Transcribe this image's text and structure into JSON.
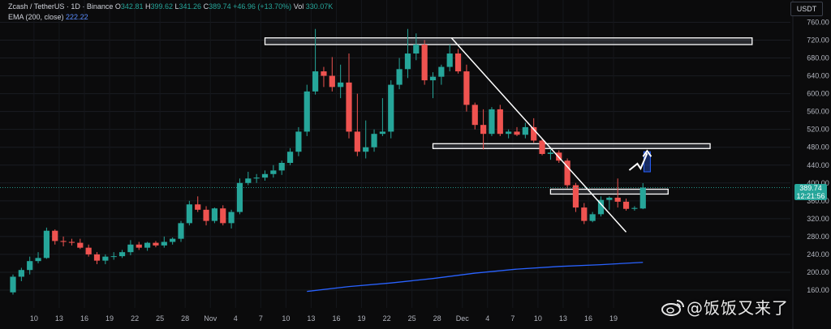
{
  "header": {
    "symbol": "Zcash / TetherUS · 1D · Binance",
    "ohlc": [
      {
        "label": "O",
        "value": "342.81"
      },
      {
        "label": "H",
        "value": "399.62"
      },
      {
        "label": "L",
        "value": "341.26"
      },
      {
        "label": "C",
        "value": "389.74"
      }
    ],
    "change": "+46.96 (+13.70%)",
    "volume_label": "Vol",
    "volume": "330.07K",
    "ema_label": "EMA (200, close)",
    "ema_value": "222.22",
    "currency": "USDT"
  },
  "price_tag": {
    "price": "389.74",
    "countdown": "12:21:56"
  },
  "watermark": "@饭饭又来了",
  "colors": {
    "up": "#26a69a",
    "down": "#ef5350",
    "ema": "#2962ff",
    "background": "#0b0b0c"
  },
  "chart_data": {
    "type": "candlestick",
    "y_axis": {
      "ticks": [
        160,
        200,
        240,
        280,
        320,
        360,
        400,
        440,
        480,
        520,
        560,
        600,
        640,
        680,
        720,
        760
      ],
      "range": [
        145,
        780
      ]
    },
    "x_axis": {
      "labels": [
        "10",
        "13",
        "16",
        "19",
        "22",
        "25",
        "28",
        "Nov",
        "4",
        "7",
        "10",
        "13",
        "16",
        "19",
        "22",
        "25",
        "28",
        "Dec",
        "4",
        "7",
        "10",
        "13",
        "16",
        "19"
      ]
    },
    "candles": [
      {
        "o": 155,
        "h": 195,
        "l": 150,
        "c": 190
      },
      {
        "o": 190,
        "h": 210,
        "l": 180,
        "c": 205
      },
      {
        "o": 205,
        "h": 235,
        "l": 195,
        "c": 225
      },
      {
        "o": 225,
        "h": 245,
        "l": 220,
        "c": 232
      },
      {
        "o": 232,
        "h": 300,
        "l": 230,
        "c": 293
      },
      {
        "o": 293,
        "h": 296,
        "l": 262,
        "c": 270
      },
      {
        "o": 270,
        "h": 280,
        "l": 258,
        "c": 268
      },
      {
        "o": 268,
        "h": 275,
        "l": 260,
        "c": 266
      },
      {
        "o": 266,
        "h": 275,
        "l": 252,
        "c": 255
      },
      {
        "o": 255,
        "h": 262,
        "l": 235,
        "c": 240
      },
      {
        "o": 240,
        "h": 245,
        "l": 218,
        "c": 226
      },
      {
        "o": 226,
        "h": 240,
        "l": 218,
        "c": 235
      },
      {
        "o": 235,
        "h": 245,
        "l": 228,
        "c": 236
      },
      {
        "o": 236,
        "h": 250,
        "l": 232,
        "c": 245
      },
      {
        "o": 245,
        "h": 272,
        "l": 238,
        "c": 262
      },
      {
        "o": 262,
        "h": 268,
        "l": 250,
        "c": 255
      },
      {
        "o": 255,
        "h": 268,
        "l": 248,
        "c": 266
      },
      {
        "o": 266,
        "h": 270,
        "l": 256,
        "c": 260
      },
      {
        "o": 260,
        "h": 280,
        "l": 255,
        "c": 268
      },
      {
        "o": 268,
        "h": 278,
        "l": 262,
        "c": 275
      },
      {
        "o": 275,
        "h": 315,
        "l": 268,
        "c": 310
      },
      {
        "o": 310,
        "h": 360,
        "l": 305,
        "c": 352
      },
      {
        "o": 352,
        "h": 370,
        "l": 335,
        "c": 340
      },
      {
        "o": 340,
        "h": 348,
        "l": 305,
        "c": 315
      },
      {
        "o": 315,
        "h": 345,
        "l": 310,
        "c": 343
      },
      {
        "o": 343,
        "h": 350,
        "l": 305,
        "c": 310
      },
      {
        "o": 310,
        "h": 340,
        "l": 298,
        "c": 335
      },
      {
        "o": 335,
        "h": 410,
        "l": 330,
        "c": 400
      },
      {
        "o": 400,
        "h": 425,
        "l": 395,
        "c": 410
      },
      {
        "o": 410,
        "h": 420,
        "l": 400,
        "c": 412
      },
      {
        "o": 412,
        "h": 428,
        "l": 405,
        "c": 420
      },
      {
        "o": 420,
        "h": 440,
        "l": 412,
        "c": 428
      },
      {
        "o": 428,
        "h": 450,
        "l": 418,
        "c": 445
      },
      {
        "o": 445,
        "h": 478,
        "l": 440,
        "c": 470
      },
      {
        "o": 470,
        "h": 525,
        "l": 460,
        "c": 515
      },
      {
        "o": 515,
        "h": 620,
        "l": 505,
        "c": 605
      },
      {
        "o": 605,
        "h": 745,
        "l": 598,
        "c": 650
      },
      {
        "o": 650,
        "h": 660,
        "l": 615,
        "c": 640
      },
      {
        "o": 640,
        "h": 682,
        "l": 605,
        "c": 615
      },
      {
        "o": 615,
        "h": 665,
        "l": 590,
        "c": 625
      },
      {
        "o": 625,
        "h": 690,
        "l": 500,
        "c": 515
      },
      {
        "o": 515,
        "h": 600,
        "l": 460,
        "c": 470
      },
      {
        "o": 470,
        "h": 540,
        "l": 455,
        "c": 480
      },
      {
        "o": 480,
        "h": 520,
        "l": 470,
        "c": 510
      },
      {
        "o": 510,
        "h": 590,
        "l": 505,
        "c": 515
      },
      {
        "o": 515,
        "h": 630,
        "l": 500,
        "c": 620
      },
      {
        "o": 620,
        "h": 680,
        "l": 610,
        "c": 655
      },
      {
        "o": 655,
        "h": 745,
        "l": 635,
        "c": 690
      },
      {
        "o": 690,
        "h": 735,
        "l": 675,
        "c": 710
      },
      {
        "o": 710,
        "h": 720,
        "l": 620,
        "c": 630
      },
      {
        "o": 630,
        "h": 648,
        "l": 590,
        "c": 638
      },
      {
        "o": 638,
        "h": 665,
        "l": 620,
        "c": 660
      },
      {
        "o": 660,
        "h": 710,
        "l": 650,
        "c": 690
      },
      {
        "o": 690,
        "h": 700,
        "l": 645,
        "c": 650
      },
      {
        "o": 650,
        "h": 665,
        "l": 560,
        "c": 575
      },
      {
        "o": 575,
        "h": 580,
        "l": 520,
        "c": 530
      },
      {
        "o": 530,
        "h": 565,
        "l": 475,
        "c": 510
      },
      {
        "o": 510,
        "h": 570,
        "l": 505,
        "c": 565
      },
      {
        "o": 565,
        "h": 575,
        "l": 505,
        "c": 510
      },
      {
        "o": 510,
        "h": 520,
        "l": 500,
        "c": 515
      },
      {
        "o": 515,
        "h": 525,
        "l": 505,
        "c": 508
      },
      {
        "o": 508,
        "h": 535,
        "l": 500,
        "c": 525
      },
      {
        "o": 525,
        "h": 545,
        "l": 490,
        "c": 495
      },
      {
        "o": 495,
        "h": 500,
        "l": 462,
        "c": 465
      },
      {
        "o": 465,
        "h": 475,
        "l": 452,
        "c": 468
      },
      {
        "o": 468,
        "h": 473,
        "l": 445,
        "c": 450
      },
      {
        "o": 450,
        "h": 455,
        "l": 388,
        "c": 395
      },
      {
        "o": 395,
        "h": 400,
        "l": 335,
        "c": 345
      },
      {
        "o": 345,
        "h": 355,
        "l": 308,
        "c": 315
      },
      {
        "o": 315,
        "h": 335,
        "l": 312,
        "c": 330
      },
      {
        "o": 330,
        "h": 370,
        "l": 325,
        "c": 362
      },
      {
        "o": 362,
        "h": 370,
        "l": 340,
        "c": 367
      },
      {
        "o": 367,
        "h": 410,
        "l": 345,
        "c": 358
      },
      {
        "o": 358,
        "h": 365,
        "l": 338,
        "c": 342
      },
      {
        "o": 342,
        "h": 348,
        "l": 338,
        "c": 344
      },
      {
        "o": 342.81,
        "h": 399.62,
        "l": 341.26,
        "c": 389.74
      }
    ],
    "ema": [
      {
        "i": 35,
        "v": 157
      },
      {
        "i": 40,
        "v": 168
      },
      {
        "i": 45,
        "v": 176
      },
      {
        "i": 50,
        "v": 186
      },
      {
        "i": 55,
        "v": 198
      },
      {
        "i": 60,
        "v": 207
      },
      {
        "i": 65,
        "v": 213
      },
      {
        "i": 70,
        "v": 217
      },
      {
        "i": 75,
        "v": 222.22
      }
    ],
    "zones": [
      {
        "name": "resistance-zone-top",
        "from_index": 30,
        "to_index": 88,
        "low": 710,
        "high": 725
      },
      {
        "name": "resistance-zone-mid",
        "from_index": 50,
        "to_index": 83,
        "low": 480,
        "high": 488
      },
      {
        "name": "support-zone",
        "from_index": 64,
        "to_index": 78,
        "low": 380,
        "high": 386
      }
    ],
    "trendline": {
      "from": {
        "i": 52.2,
        "v": 725
      },
      "to": {
        "i": 73,
        "v": 290
      }
    },
    "target_arrow": {
      "i": 75.5,
      "from": 425,
      "to": 470
    }
  }
}
